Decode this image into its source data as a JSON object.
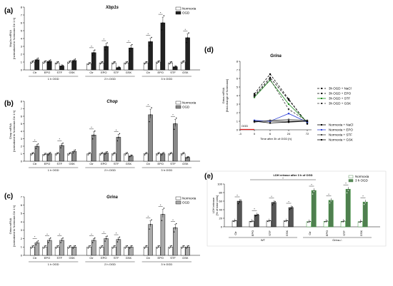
{
  "figure": {
    "panel_letters": [
      "(a)",
      "(b)",
      "(c)",
      "(d)",
      "(e)"
    ]
  },
  "chart_data": [
    {
      "id": "a",
      "type": "bar",
      "title": "Xbp1s",
      "ylabel": "Xbp1s mRNA\n[normalized to Normoxia Ctr 1 h]",
      "ylim": [
        0,
        8
      ],
      "yticks": [
        "0",
        "1",
        "2",
        "3",
        "4",
        "5",
        "6",
        "7",
        "8"
      ],
      "legend": [
        "Normoxia",
        "OGD"
      ],
      "colors": [
        "#ffffff",
        "#222222"
      ],
      "groups": [
        "1 h OGD",
        "2 h OGD",
        "3 h OGD"
      ],
      "categories": [
        "Ctr",
        "EPO",
        "STF",
        "GSK"
      ],
      "series": [
        {
          "name": "Normoxia",
          "values": [
            [
              1.0,
              1.0,
              0.9,
              1.0
            ],
            [
              0.8,
              0.9,
              0.9,
              0.9
            ],
            [
              0.9,
              1.0,
              0.9,
              1.0
            ]
          ]
        },
        {
          "name": "OGD",
          "values": [
            [
              1.3,
              1.1,
              0.5,
              1.2
            ],
            [
              2.2,
              3.0,
              0.3,
              2.8
            ],
            [
              3.6,
              6.0,
              0.4,
              4.1
            ]
          ]
        }
      ]
    },
    {
      "id": "b",
      "type": "bar",
      "title": "Chop",
      "ylabel": "Chop mRNA\n[normalized to Normoxia Ctr 1 h]",
      "ylim": [
        0,
        8
      ],
      "yticks": [
        "0",
        "1",
        "2",
        "3",
        "4",
        "5",
        "6",
        "7",
        "8"
      ],
      "legend": [
        "Normoxia",
        "OGD"
      ],
      "colors": [
        "#ffffff",
        "#888888"
      ],
      "groups": [
        "1 h OGD",
        "2 h OGD",
        "3 h OGD"
      ],
      "categories": [
        "Ctr",
        "EPO",
        "STF",
        "GSK"
      ],
      "series": [
        {
          "name": "Normoxia",
          "values": [
            [
              1.0,
              0.9,
              1.0,
              1.0
            ],
            [
              1.0,
              1.0,
              1.0,
              1.0
            ],
            [
              1.0,
              1.0,
              1.0,
              1.0
            ]
          ]
        },
        {
          "name": "OGD",
          "values": [
            [
              2.0,
              1.0,
              2.1,
              1.3
            ],
            [
              3.5,
              1.1,
              3.2,
              0.7
            ],
            [
              6.2,
              1.0,
              5.0,
              0.5
            ]
          ]
        }
      ]
    },
    {
      "id": "c",
      "type": "bar",
      "title": "Grina",
      "ylabel": "Grina mRNA\n[normalized to Normoxia Ctr 1 h]",
      "ylim": [
        0,
        7
      ],
      "yticks": [
        "0",
        "1",
        "2",
        "3",
        "4",
        "5",
        "6",
        "7"
      ],
      "legend": [
        "Normoxia",
        "OGD"
      ],
      "colors": [
        "#ffffff",
        "#aaaaaa"
      ],
      "groups": [
        "1 h OGD",
        "2 h OGD",
        "3 h OGD"
      ],
      "categories": [
        "Ctr",
        "EPO",
        "STF",
        "GSK"
      ],
      "series": [
        {
          "name": "Normoxia",
          "values": [
            [
              1.0,
              1.0,
              1.0,
              1.0
            ],
            [
              1.0,
              1.0,
              1.0,
              1.0
            ],
            [
              1.0,
              1.0,
              1.0,
              1.0
            ]
          ]
        },
        {
          "name": "OGD",
          "values": [
            [
              1.5,
              1.8,
              1.8,
              1.0
            ],
            [
              1.8,
              2.0,
              1.9,
              1.0
            ],
            [
              3.7,
              4.9,
              3.3,
              1.0
            ]
          ]
        }
      ]
    },
    {
      "id": "d",
      "type": "line",
      "title": "Grina",
      "ylabel": "Grina mRNA\n[fold-change of Normoxia]",
      "xlabel": "Time after 3h of OGD [h]",
      "ylim": [
        0,
        8
      ],
      "yticks": [
        "0",
        "1",
        "2",
        "3",
        "4",
        "5",
        "6",
        "7",
        "8"
      ],
      "x_tick_labels": [
        "-3",
        "0",
        "6",
        "24",
        "72"
      ],
      "x": [
        "0",
        "6",
        "24",
        "72"
      ],
      "ogd_label": "OGD",
      "series": [
        {
          "name": "3h OGD + NaCl",
          "color": "#000000",
          "dash": "3,2",
          "values": [
            4.2,
            6.5,
            3.6,
            0.7
          ]
        },
        {
          "name": "3h OGD + EPO",
          "color": "#000000",
          "dash": "3,2",
          "values": [
            4.0,
            6.1,
            3.5,
            0.8
          ]
        },
        {
          "name": "3h OGD + STF",
          "color": "#1a8a1a",
          "dash": "",
          "values": [
            3.8,
            5.8,
            3.0,
            0.9
          ]
        },
        {
          "name": "3h OGD + GSK",
          "color": "#333333",
          "dash": "3,2",
          "values": [
            3.9,
            5.9,
            2.4,
            1.0
          ]
        },
        {
          "name": "Normoxia + NaCl",
          "color": "#000000",
          "dash": "",
          "values": [
            1.0,
            1.0,
            1.0,
            1.0
          ]
        },
        {
          "name": "Normoxia + EPO",
          "color": "#2b3fd6",
          "dash": "",
          "values": [
            1.1,
            1.0,
            1.9,
            0.9
          ]
        },
        {
          "name": "Normoxia + STF",
          "color": "#444444",
          "dash": "",
          "values": [
            0.9,
            1.1,
            1.2,
            1.1
          ]
        },
        {
          "name": "Normoxia + GSK",
          "color": "#000000",
          "dash": "",
          "values": [
            1.0,
            0.8,
            0.9,
            1.0
          ]
        }
      ]
    },
    {
      "id": "e",
      "type": "bar",
      "title": "LDH release after 3 h of OGD",
      "ylabel": "LDH release\n[% of total cells]",
      "ylim": [
        0,
        100
      ],
      "yticks": [
        "0",
        "20",
        "40",
        "60",
        "80",
        "100"
      ],
      "legend": [
        "Normoxia",
        "3 h OGD"
      ],
      "colors": [
        "#ffffff",
        "#555555"
      ],
      "groups": [
        "WT",
        "Grina-/-"
      ],
      "categories": [
        "Ctr",
        "EPO",
        "STF",
        "GSK"
      ],
      "series": [
        {
          "name": "Normoxia",
          "values": [
            [
              14,
              13,
              14,
              14
            ],
            [
              12,
              13,
              13,
              12
            ]
          ]
        },
        {
          "name": "3 h OGD",
          "values": [
            [
              60,
              28,
              57,
              45
            ],
            [
              85,
              62,
              88,
              58
            ]
          ]
        }
      ]
    }
  ]
}
